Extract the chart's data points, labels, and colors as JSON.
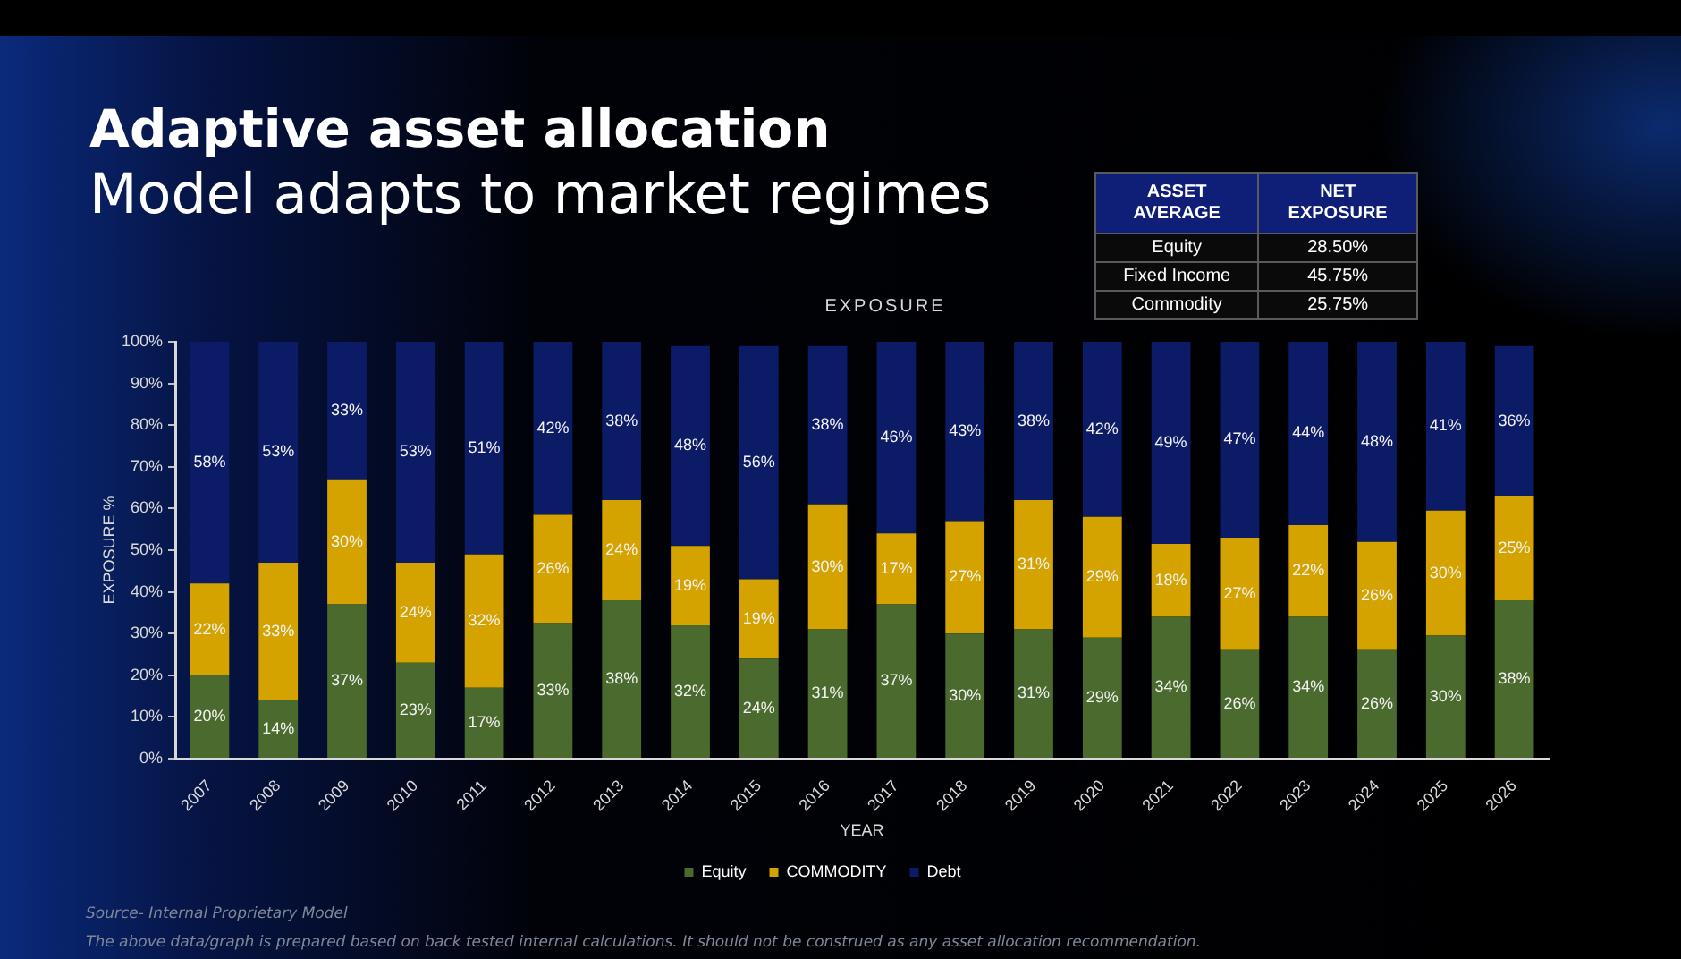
{
  "chart_data": {
    "type": "bar",
    "title": "Adaptive asset allocation",
    "subtitle": "Model adapts to market regimes",
    "xlabel": "YEAR",
    "ylabel": "EXPOSURE %",
    "categories": [
      "2007",
      "2008",
      "2009",
      "2010",
      "2011",
      "2012",
      "2013",
      "2014",
      "2015",
      "2016",
      "2017",
      "2018",
      "2019",
      "2020",
      "2021",
      "2022",
      "2023",
      "2024",
      "2025",
      "2026"
    ],
    "series": [
      {
        "name": "Equity",
        "color": "#4a6a2e",
        "values": [
          20,
          14,
          37,
          23,
          17,
          32.5,
          38,
          32,
          24,
          31,
          37,
          30,
          31,
          29,
          34,
          26,
          34,
          26,
          29.5,
          38
        ],
        "value_labels": [
          "20%",
          "14%",
          "37%",
          "23%",
          "17%",
          "33%",
          "38%",
          "32%",
          "24%",
          "31%",
          "37%",
          "30%",
          "31%",
          "29%",
          "34%",
          "26%",
          "34%",
          "26%",
          "30%",
          "38%"
        ]
      },
      {
        "name": "COMMODITY",
        "color": "#d4a300",
        "values": [
          22,
          33,
          30,
          24,
          32,
          26,
          24,
          19,
          19,
          30,
          17,
          27,
          31,
          29,
          17.5,
          27,
          22,
          26,
          30,
          25
        ],
        "value_labels": [
          "22%",
          "33%",
          "30%",
          "24%",
          "32%",
          "26%",
          "24%",
          "19%",
          "19%",
          "30%",
          "17%",
          "27%",
          "31%",
          "29%",
          "18%",
          "27%",
          "22%",
          "26%",
          "30%",
          "25%"
        ]
      },
      {
        "name": "Debt",
        "color": "#0c1b66",
        "values": [
          58,
          53,
          33,
          53,
          51,
          41.5,
          38,
          48,
          56,
          38,
          46,
          43,
          38,
          42,
          48.5,
          47,
          44,
          48,
          40.5,
          36
        ],
        "value_labels": [
          "58%",
          "53%",
          "33%",
          "53%",
          "51%",
          "42%",
          "38%",
          "48%",
          "56%",
          "38%",
          "46%",
          "43%",
          "38%",
          "42%",
          "49%",
          "47%",
          "44%",
          "48%",
          "41%",
          "36%"
        ]
      }
    ],
    "stacked": true,
    "ylim": [
      0,
      100
    ],
    "yticks": [
      {
        "value": 0,
        "label": "0%"
      },
      {
        "value": 10,
        "label": "10%"
      },
      {
        "value": 20,
        "label": "20%"
      },
      {
        "value": 30,
        "label": "30%"
      },
      {
        "value": 40,
        "label": "40%"
      },
      {
        "value": 50,
        "label": "50%"
      },
      {
        "value": 60,
        "label": "60%"
      },
      {
        "value": 70,
        "label": "70%"
      },
      {
        "value": 80,
        "label": "80%"
      },
      {
        "value": 90,
        "label": "90%"
      },
      {
        "value": 100,
        "label": "100%"
      }
    ],
    "legend": "bottom",
    "annotations": [
      "EXPOSURE",
      "ASSET AVERAGE",
      "NET EXPOSURE",
      "Equity",
      "28.50%",
      "Fixed Income",
      "45.75%",
      "Commodity",
      "25.75%",
      "Source- Internal Proprietary Model",
      "The above data/graph is prepared based on back tested internal calculations. It should not be construed as any asset allocation recommendation."
    ]
  }
}
